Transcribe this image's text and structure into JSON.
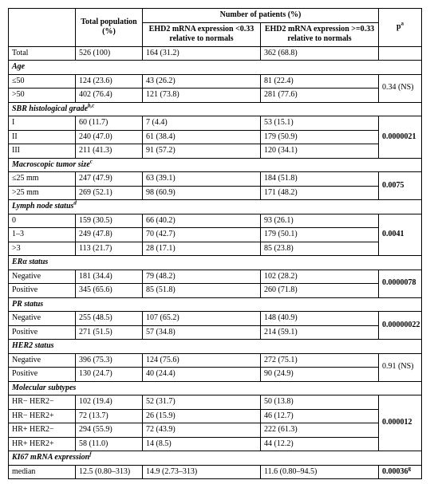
{
  "header": {
    "col1_blank": "",
    "col2": "Total population (%)",
    "group": "Number of patients (%)",
    "col3": "EHD2 mRNA expression <0.33 relative to normals",
    "col4": "EHD2 mRNA expression >=0.33 relative to normals",
    "col5": "p",
    "col5_sup": "a"
  },
  "total": {
    "label": "Total",
    "pop": "526 (100)",
    "low": "164 (31.2)",
    "high": "362 (68.8)",
    "p": ""
  },
  "age": {
    "title": "Age",
    "rows": [
      {
        "label": "≤50",
        "pop": "124 (23.6)",
        "low": "43 (26.2)",
        "high": "81 (22.4)"
      },
      {
        "label": ">50",
        "pop": "402 (76.4)",
        "low": "121 (73.8)",
        "high": "281 (77.6)"
      }
    ],
    "p": "0.34 (NS)"
  },
  "sbr": {
    "title": "SBR histological grade",
    "title_sup": "b,c",
    "rows": [
      {
        "label": "I",
        "pop": "60 (11.7)",
        "low": "7 (4.4)",
        "high": "53 (15.1)"
      },
      {
        "label": "II",
        "pop": "240 (47.0)",
        "low": "61 (38.4)",
        "high": "179 (50.9)"
      },
      {
        "label": "III",
        "pop": "211 (41.3)",
        "low": "91 (57.2)",
        "high": "120 (34.1)"
      }
    ],
    "p": "0.0000021"
  },
  "size": {
    "title": "Macroscopic tumor size",
    "title_sup": "c",
    "rows": [
      {
        "label": "≤25 mm",
        "pop": "247 (47.9)",
        "low": "63 (39.1)",
        "high": "184 (51.8)"
      },
      {
        "label": ">25 mm",
        "pop": "269 (52.1)",
        "low": "98 (60.9)",
        "high": "171 (48.2)"
      }
    ],
    "p": "0.0075"
  },
  "ln": {
    "title": "Lymph node status",
    "title_sup": "d",
    "rows": [
      {
        "label": "0",
        "pop": "159 (30.5)",
        "low": "66 (40.2)",
        "high": "93 (26.1)"
      },
      {
        "label": "1–3",
        "pop": "249 (47.8)",
        "low": "70 (42.7)",
        "high": "179 (50.1)"
      },
      {
        "label": ">3",
        "pop": "113 (21.7)",
        "low": "28 (17.1)",
        "high": "85 (23.8)"
      }
    ],
    "p": "0.0041"
  },
  "er": {
    "title": "ERα status",
    "rows": [
      {
        "label": "Negative",
        "pop": "181 (34.4)",
        "low": "79 (48.2)",
        "high": "102 (28.2)"
      },
      {
        "label": "Positive",
        "pop": "345 (65.6)",
        "low": "85 (51.8)",
        "high": "260 (71.8)"
      }
    ],
    "p": "0.0000078"
  },
  "pr": {
    "title": "PR status",
    "rows": [
      {
        "label": "Negative",
        "pop": "255 (48.5)",
        "low": "107 (65.2)",
        "high": "148 (40.9)"
      },
      {
        "label": "Positive",
        "pop": "271 (51.5)",
        "low": "57 (34.8)",
        "high": "214 (59.1)"
      }
    ],
    "p": "0.00000022"
  },
  "her2": {
    "title": "HER2 status",
    "rows": [
      {
        "label": "Negative",
        "pop": "396 (75.3)",
        "low": "124 (75.6)",
        "high": "272 (75.1)"
      },
      {
        "label": "Positive",
        "pop": "130 (24.7)",
        "low": "40 (24.4)",
        "high": "90 (24.9)"
      }
    ],
    "p": "0.91 (NS)"
  },
  "mol": {
    "title": "Molecular subtypes",
    "rows": [
      {
        "label": "HR− HER2−",
        "pop": "102 (19.4)",
        "low": "52 (31.7)",
        "high": "50 (13.8)"
      },
      {
        "label": "HR− HER2+",
        "pop": "72 (13.7)",
        "low": "26 (15.9)",
        "high": "46 (12.7)"
      },
      {
        "label": "HR+ HER2−",
        "pop": "294 (55.9)",
        "low": "72 (43.9)",
        "high": "222 (61.3)"
      },
      {
        "label": "HR+ HER2+",
        "pop": "58 (11.0)",
        "low": "14 (8.5)",
        "high": "44 (12.2)"
      }
    ],
    "p": "0.000012"
  },
  "ki67": {
    "title": "KI67 mRNA expression",
    "title_sup": "f",
    "row": {
      "label": "median",
      "pop": "12.5 (0.80–313)",
      "low": "14.9 (2.73–313)",
      "high": "11.6 (0.80–94.5)"
    },
    "p": "0.00036",
    "p_sup": "g"
  }
}
